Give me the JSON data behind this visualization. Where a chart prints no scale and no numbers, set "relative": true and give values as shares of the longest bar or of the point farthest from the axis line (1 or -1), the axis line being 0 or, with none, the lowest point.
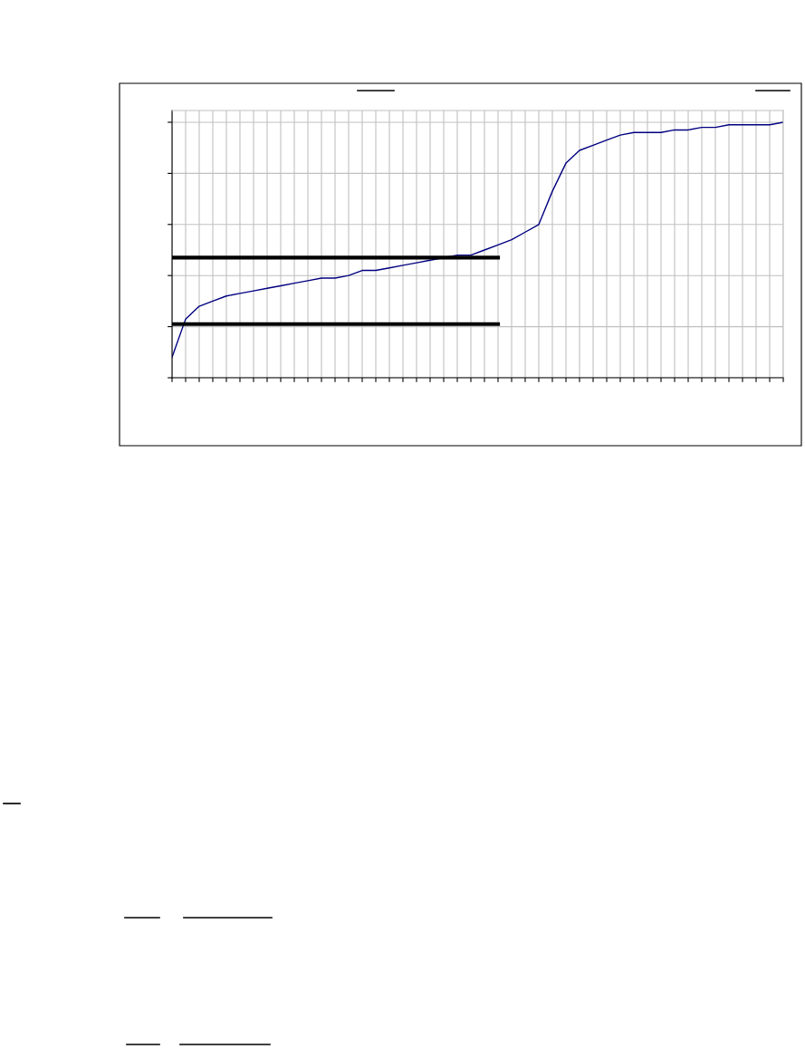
{
  "chart_data": {
    "type": "line",
    "relative": true,
    "grid": true,
    "legend": false,
    "marker": "none",
    "line_style": "solid",
    "categories": [
      null,
      null,
      null,
      null,
      null,
      null,
      null,
      null,
      null,
      null,
      null,
      null,
      null,
      null,
      null,
      null,
      null,
      null,
      null,
      null,
      null,
      null,
      null,
      null,
      null,
      null,
      null,
      null,
      null,
      null,
      null,
      null,
      null,
      null,
      null,
      null,
      null,
      null,
      null,
      null,
      null,
      null,
      null,
      null,
      null,
      null
    ],
    "series": [
      {
        "color": "#000080",
        "values": [
          0.08,
          0.23,
          0.28,
          0.3,
          0.32,
          0.33,
          0.34,
          0.35,
          0.36,
          0.37,
          0.38,
          0.39,
          0.39,
          0.4,
          0.42,
          0.42,
          0.43,
          0.44,
          0.45,
          0.46,
          0.47,
          0.48,
          0.48,
          0.5,
          0.52,
          0.54,
          0.57,
          0.6,
          0.73,
          0.84,
          0.89,
          0.91,
          0.93,
          0.95,
          0.96,
          0.96,
          0.96,
          0.97,
          0.97,
          0.98,
          0.98,
          0.99,
          0.99,
          0.99,
          0.99,
          1.0
        ]
      },
      {
        "color": "#000000",
        "values": [
          0.47,
          0.47,
          0.47,
          0.47,
          0.47,
          0.47,
          0.47,
          0.47,
          0.47,
          0.47,
          0.47,
          0.47,
          0.47,
          0.47,
          0.47,
          0.47,
          0.47,
          0.47,
          0.47,
          0.47,
          0.47,
          0.47,
          0.47,
          0.47,
          0.47,
          null,
          null,
          null,
          null,
          null,
          null,
          null,
          null,
          null,
          null,
          null,
          null,
          null,
          null,
          null,
          null,
          null,
          null,
          null,
          null,
          null
        ]
      },
      {
        "color": "#000000",
        "values": [
          0.21,
          0.21,
          0.21,
          0.21,
          0.21,
          0.21,
          0.21,
          0.21,
          0.21,
          0.21,
          0.21,
          0.21,
          0.21,
          0.21,
          0.21,
          0.21,
          0.21,
          0.21,
          0.21,
          0.21,
          0.21,
          0.21,
          0.21,
          0.21,
          0.21,
          null,
          null,
          null,
          null,
          null,
          null,
          null,
          null,
          null,
          null,
          null,
          null,
          null,
          null,
          null,
          null,
          null,
          null,
          null,
          null,
          null
        ]
      }
    ]
  }
}
